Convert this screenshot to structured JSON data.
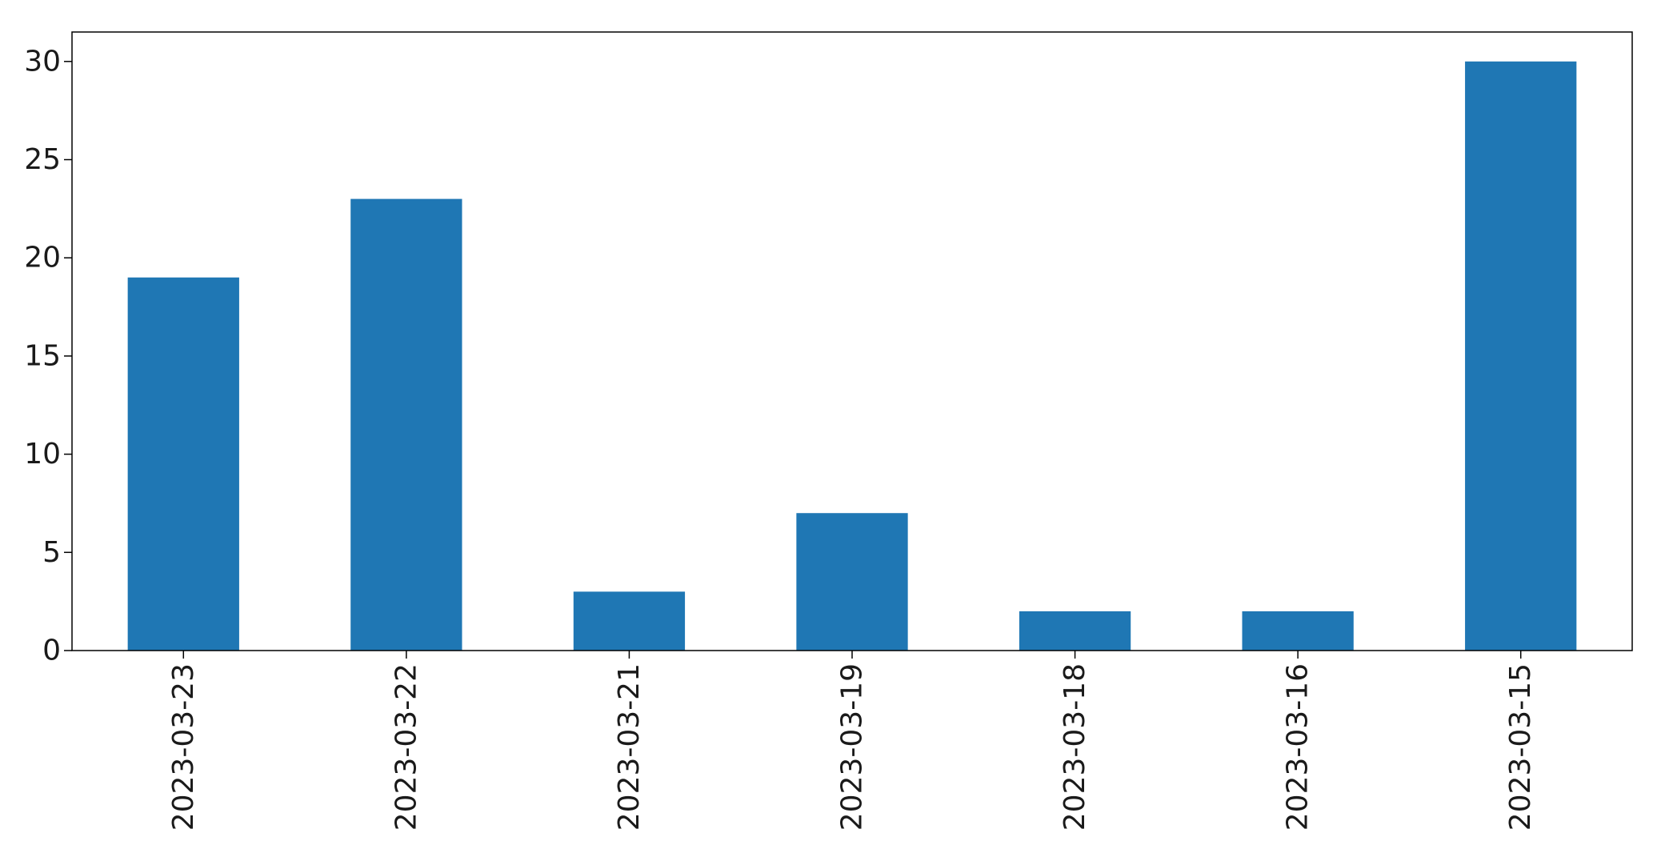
{
  "chart_data": {
    "type": "bar",
    "title": "",
    "xlabel": "",
    "ylabel": "",
    "categories": [
      "2023-03-23",
      "2023-03-22",
      "2023-03-21",
      "2023-03-19",
      "2023-03-18",
      "2023-03-16",
      "2023-03-15"
    ],
    "values": [
      19,
      23,
      3,
      7,
      2,
      2,
      30
    ],
    "ylim": [
      0,
      31.5
    ],
    "yticks": [
      0,
      5,
      10,
      15,
      20,
      25,
      30
    ],
    "grid": false,
    "legend": false,
    "colors": {
      "bar": "#1f77b4",
      "axis": "#000000",
      "text": "#1a1a1a"
    }
  }
}
